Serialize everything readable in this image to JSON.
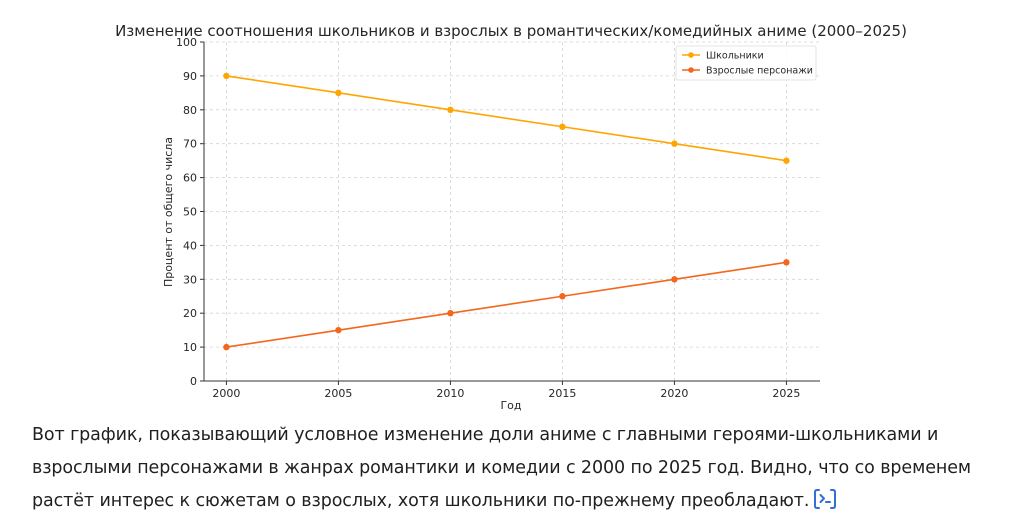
{
  "chart_data": {
    "type": "line",
    "title": "Изменение соотношения школьников и взрослых в романтических/комедийных аниме (2000–2025)",
    "xlabel": "Год",
    "ylabel": "Процент от общего числа",
    "x": [
      2000,
      2005,
      2010,
      2015,
      2020,
      2025
    ],
    "xticks": [
      "2000",
      "2005",
      "2010",
      "2015",
      "2020",
      "2025"
    ],
    "yticks": [
      "0",
      "10",
      "20",
      "30",
      "40",
      "50",
      "60",
      "70",
      "80",
      "90",
      "100"
    ],
    "ylim": [
      0,
      100
    ],
    "xlim": [
      1999,
      2026.5
    ],
    "grid": true,
    "legend_position": "top-right",
    "series": [
      {
        "name": "Школьники",
        "color": "#FFA500",
        "values": [
          90,
          85,
          80,
          75,
          70,
          65
        ]
      },
      {
        "name": "Взрослые персонажи",
        "color": "#F4661B",
        "values": [
          10,
          15,
          20,
          25,
          30,
          35
        ]
      }
    ]
  },
  "message": {
    "text": "Вот график, показывающий условное изменение доли аниме с главными героями-школьниками и взрослыми персонажами в жанрах романтики и комедии с 2000 по 2025 год. Видно, что со временем растёт интерес к сюжетам о взрослых, хотя школьники по-прежнему преобладают.",
    "code_icon": "code-analysis-icon",
    "accent_color": "#2F6FD6"
  }
}
